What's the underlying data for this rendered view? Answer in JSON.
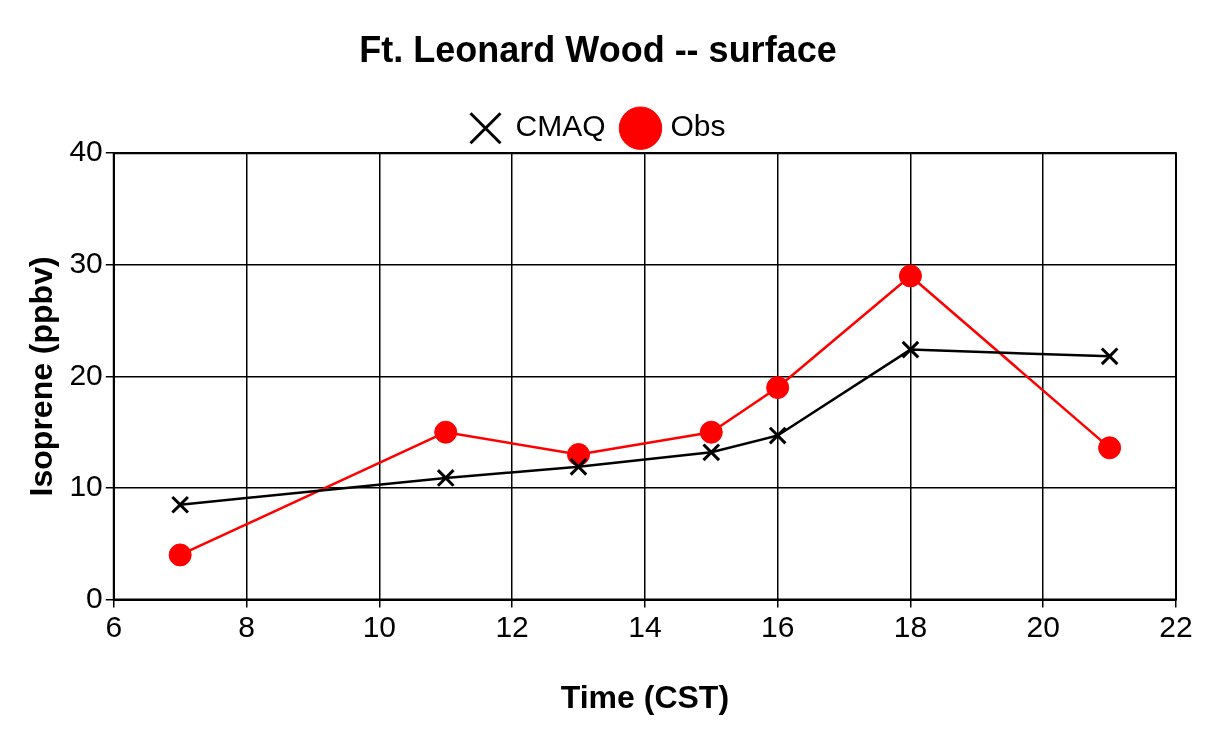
{
  "chart_data": {
    "type": "line",
    "title": "Ft. Leonard Wood -- surface",
    "xlabel": "Time (CST)",
    "ylabel": "Isoprene (ppbv)",
    "x": [
      7,
      11,
      13,
      15,
      16,
      18,
      21
    ],
    "series": [
      {
        "name": "Obs",
        "color": "#ff0000",
        "marker": "circle",
        "values": [
          4,
          15,
          13,
          15,
          19,
          29,
          13.6
        ]
      },
      {
        "name": "CMAQ",
        "color": "#000000",
        "marker": "cross",
        "values": [
          8.5,
          10.9,
          11.9,
          13.2,
          14.7,
          22.4,
          21.8
        ]
      }
    ],
    "xlim": [
      6,
      22
    ],
    "xticks": [
      6,
      8,
      10,
      12,
      14,
      16,
      18,
      20,
      22
    ],
    "ylim": [
      0,
      40
    ],
    "yticks": [
      0,
      10,
      20,
      30,
      40
    ],
    "grid": true,
    "legend": "top",
    "line_style": "solid"
  }
}
